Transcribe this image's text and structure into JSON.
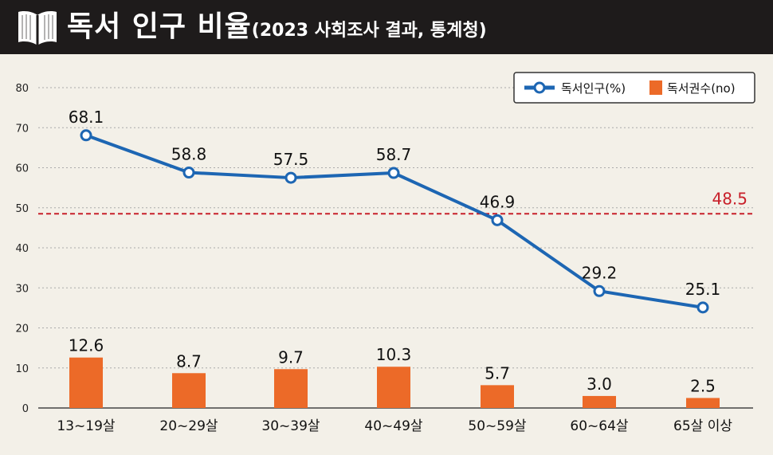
{
  "header": {
    "title": "독서 인구 비율",
    "subtitle": "(2023 사회조사 결과, 통계청)",
    "icon": "open-book-icon"
  },
  "colors": {
    "line": "#1d66b3",
    "bar": "#ec6a28",
    "reference": "#c8202a",
    "header_bg": "#1e1b1b",
    "background": "#f3f0e8"
  },
  "chart_data": {
    "type": "bar",
    "title": "독서 인구 비율",
    "subtitle": "(2023 사회조사 결과, 통계청)",
    "categories": [
      "13~19살",
      "20~29살",
      "30~39살",
      "40~49살",
      "50~59살",
      "60~64살",
      "65살 이상"
    ],
    "series": [
      {
        "name": "독서인구(%)",
        "kind": "line",
        "values": [
          68.1,
          58.8,
          57.5,
          58.7,
          46.9,
          29.2,
          25.1
        ],
        "labels": [
          "68.1",
          "58.8",
          "57.5",
          "58.7",
          "46.9",
          "29.2",
          "25.1"
        ]
      },
      {
        "name": "독서권수(no)",
        "kind": "bar",
        "values": [
          12.6,
          8.7,
          9.7,
          10.3,
          5.7,
          3.0,
          2.5
        ],
        "labels": [
          "12.6",
          "8.7",
          "9.7",
          "10.3",
          "5.7",
          "3.0",
          "2.5"
        ]
      }
    ],
    "reference_line": {
      "value": 48.5,
      "label": "48.5",
      "style": "dashed"
    },
    "yticks": [
      "0",
      "10",
      "20",
      "30",
      "40",
      "50",
      "60",
      "70",
      "80"
    ],
    "ylim": [
      0,
      80
    ],
    "xlabel": "",
    "ylabel": "",
    "grid": true,
    "legend_position": "top-right"
  }
}
